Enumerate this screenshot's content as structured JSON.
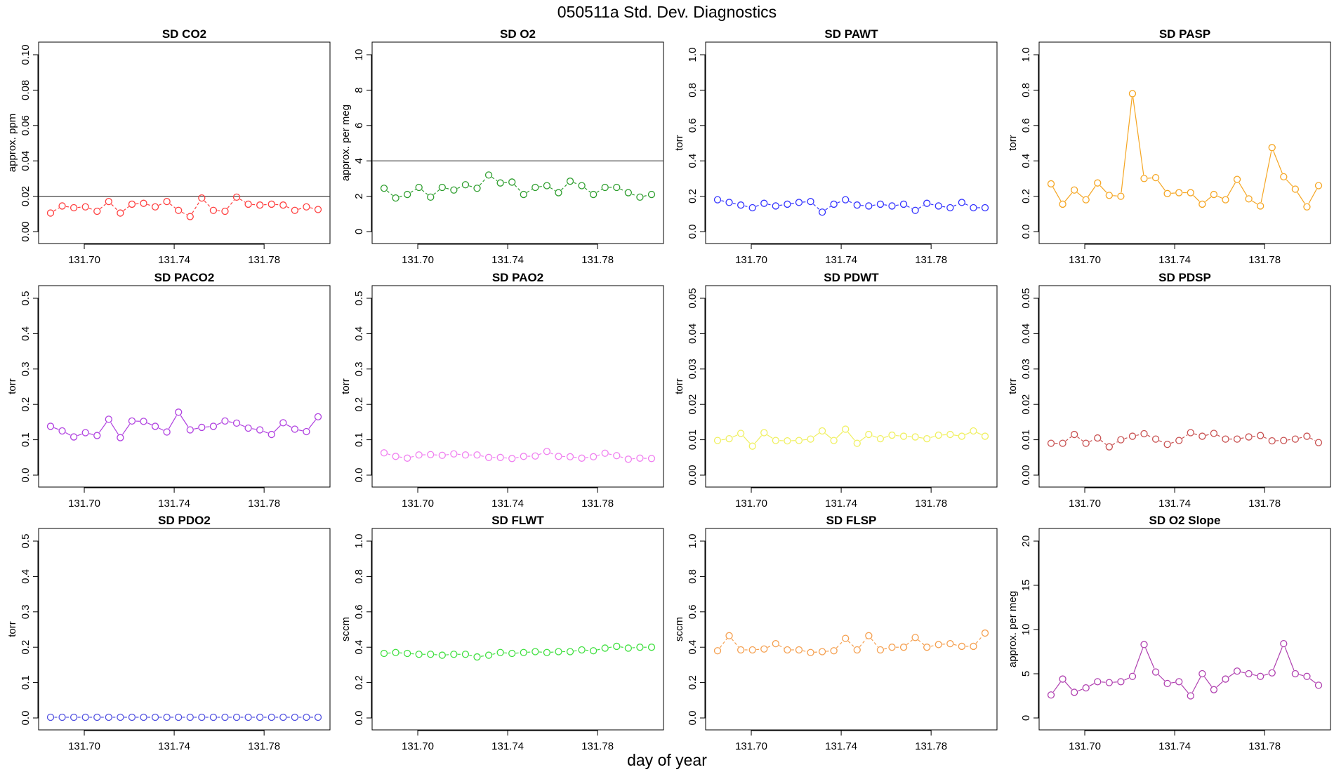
{
  "figure": {
    "title": "050511a   Std. Dev. Diagnostics",
    "xlabel": "day of year",
    "x_ticks": [
      131.7,
      131.74,
      131.78
    ],
    "x_tick_labels": [
      "131.70",
      "131.74",
      "131.78"
    ]
  },
  "chart_data": [
    {
      "type": "line",
      "title": "SD CO2",
      "ylabel": "approx. ppm",
      "color": "#ff4040",
      "ylim": [
        0,
        0.1
      ],
      "yticks": [
        0,
        0.02,
        0.04,
        0.06,
        0.08,
        0.1
      ],
      "ytick_labels": [
        "0.00",
        "0.02",
        "0.04",
        "0.06",
        "0.08",
        "0.10"
      ],
      "hline": 0.02,
      "connect": "dashed",
      "values": [
        0.0105,
        0.0145,
        0.0135,
        0.014,
        0.0115,
        0.017,
        0.0105,
        0.0155,
        0.016,
        0.014,
        0.017,
        0.012,
        0.0085,
        0.019,
        0.012,
        0.0115,
        0.0195,
        0.0155,
        0.015,
        0.0155,
        0.015,
        0.012,
        0.014,
        0.0125
      ]
    },
    {
      "type": "line",
      "title": "SD O2",
      "ylabel": "approx. per meg",
      "color": "#2e9e2e",
      "ylim": [
        0,
        10
      ],
      "yticks": [
        0,
        2,
        4,
        6,
        8,
        10
      ],
      "ytick_labels": [
        "0",
        "2",
        "4",
        "6",
        "8",
        "10"
      ],
      "hline": 4,
      "connect": "dashed",
      "values": [
        2.45,
        1.9,
        2.1,
        2.5,
        1.95,
        2.5,
        2.35,
        2.65,
        2.45,
        3.2,
        2.75,
        2.8,
        2.1,
        2.5,
        2.6,
        2.2,
        2.85,
        2.6,
        2.1,
        2.5,
        2.5,
        2.2,
        1.95,
        2.1
      ]
    },
    {
      "type": "line",
      "title": "SD PAWT",
      "ylabel": "torr",
      "color": "#3333ff",
      "ylim": [
        0,
        1.0
      ],
      "yticks": [
        0,
        0.2,
        0.4,
        0.6,
        0.8,
        1.0
      ],
      "ytick_labels": [
        "0.0",
        "0.2",
        "0.4",
        "0.6",
        "0.8",
        "1.0"
      ],
      "hline": null,
      "connect": "dashed",
      "values": [
        0.18,
        0.165,
        0.15,
        0.135,
        0.16,
        0.145,
        0.155,
        0.165,
        0.17,
        0.11,
        0.155,
        0.18,
        0.15,
        0.145,
        0.155,
        0.145,
        0.155,
        0.12,
        0.16,
        0.145,
        0.135,
        0.165,
        0.135,
        0.135
      ]
    },
    {
      "type": "line",
      "title": "SD PASP",
      "ylabel": "torr",
      "color": "#f5a623",
      "ylim": [
        0,
        1.0
      ],
      "yticks": [
        0,
        0.2,
        0.4,
        0.6,
        0.8,
        1.0
      ],
      "ytick_labels": [
        "0.0",
        "0.2",
        "0.4",
        "0.6",
        "0.8",
        "1.0"
      ],
      "hline": null,
      "connect": "solid",
      "values": [
        0.27,
        0.155,
        0.235,
        0.18,
        0.275,
        0.205,
        0.2,
        0.78,
        0.3,
        0.305,
        0.215,
        0.22,
        0.22,
        0.155,
        0.21,
        0.18,
        0.295,
        0.185,
        0.145,
        0.475,
        0.31,
        0.24,
        0.14,
        0.26
      ]
    },
    {
      "type": "line",
      "title": "SD PACO2",
      "ylabel": "torr",
      "color": "#b040e0",
      "ylim": [
        0,
        0.5
      ],
      "yticks": [
        0,
        0.1,
        0.2,
        0.3,
        0.4,
        0.5
      ],
      "ytick_labels": [
        "0.0",
        "0.1",
        "0.2",
        "0.3",
        "0.4",
        "0.5"
      ],
      "hline": null,
      "connect": "solid",
      "values": [
        0.138,
        0.125,
        0.108,
        0.12,
        0.112,
        0.158,
        0.106,
        0.153,
        0.152,
        0.138,
        0.122,
        0.178,
        0.128,
        0.135,
        0.138,
        0.153,
        0.147,
        0.133,
        0.128,
        0.115,
        0.148,
        0.13,
        0.123,
        0.165
      ]
    },
    {
      "type": "line",
      "title": "SD PAO2",
      "ylabel": "torr",
      "color": "#f080f0",
      "ylim": [
        0,
        0.5
      ],
      "yticks": [
        0,
        0.1,
        0.2,
        0.3,
        0.4,
        0.5
      ],
      "ytick_labels": [
        "0.0",
        "0.1",
        "0.2",
        "0.3",
        "0.4",
        "0.5"
      ],
      "hline": null,
      "connect": "dashed",
      "values": [
        0.063,
        0.053,
        0.048,
        0.057,
        0.058,
        0.056,
        0.06,
        0.057,
        0.057,
        0.05,
        0.05,
        0.047,
        0.053,
        0.054,
        0.067,
        0.053,
        0.052,
        0.048,
        0.052,
        0.062,
        0.055,
        0.045,
        0.048,
        0.047
      ]
    },
    {
      "type": "line",
      "title": "SD PDWT",
      "ylabel": "torr",
      "color": "#f0f060",
      "ylim": [
        0,
        0.05
      ],
      "yticks": [
        0,
        0.01,
        0.02,
        0.03,
        0.04,
        0.05
      ],
      "ytick_labels": [
        "0.00",
        "0.01",
        "0.02",
        "0.03",
        "0.04",
        "0.05"
      ],
      "hline": null,
      "connect": "solid",
      "values": [
        0.0098,
        0.0103,
        0.0118,
        0.0082,
        0.012,
        0.0098,
        0.0097,
        0.0098,
        0.0102,
        0.0125,
        0.0098,
        0.013,
        0.009,
        0.0115,
        0.0103,
        0.0113,
        0.011,
        0.0108,
        0.0103,
        0.0113,
        0.0115,
        0.011,
        0.0125,
        0.011
      ]
    },
    {
      "type": "line",
      "title": "SD PDSP",
      "ylabel": "torr",
      "color": "#c85050",
      "ylim": [
        0,
        0.05
      ],
      "yticks": [
        0,
        0.01,
        0.02,
        0.03,
        0.04,
        0.05
      ],
      "ytick_labels": [
        "0.00",
        "0.01",
        "0.02",
        "0.03",
        "0.04",
        "0.05"
      ],
      "hline": null,
      "connect": "dashed",
      "values": [
        0.009,
        0.009,
        0.0115,
        0.009,
        0.0105,
        0.008,
        0.01,
        0.011,
        0.0117,
        0.0102,
        0.0087,
        0.0098,
        0.012,
        0.011,
        0.0118,
        0.0102,
        0.0102,
        0.0108,
        0.0112,
        0.0097,
        0.0098,
        0.0102,
        0.011,
        0.0092
      ]
    },
    {
      "type": "line",
      "title": "SD PDO2",
      "ylabel": "torr",
      "color": "#5050e0",
      "ylim": [
        0,
        0.5
      ],
      "yticks": [
        0,
        0.1,
        0.2,
        0.3,
        0.4,
        0.5
      ],
      "ytick_labels": [
        "0.0",
        "0.1",
        "0.2",
        "0.3",
        "0.4",
        "0.5"
      ],
      "hline": null,
      "connect": "dashed",
      "values": [
        0.002,
        0.002,
        0.002,
        0.002,
        0.002,
        0.002,
        0.002,
        0.002,
        0.002,
        0.002,
        0.002,
        0.002,
        0.002,
        0.002,
        0.002,
        0.002,
        0.002,
        0.002,
        0.002,
        0.002,
        0.002,
        0.002,
        0.002,
        0.002
      ]
    },
    {
      "type": "line",
      "title": "SD FLWT",
      "ylabel": "sccm",
      "color": "#40e040",
      "ylim": [
        0,
        1.0
      ],
      "yticks": [
        0,
        0.2,
        0.4,
        0.6,
        0.8,
        1.0
      ],
      "ytick_labels": [
        "0.0",
        "0.2",
        "0.4",
        "0.6",
        "0.8",
        "1.0"
      ],
      "hline": null,
      "connect": "dashed",
      "values": [
        0.365,
        0.37,
        0.365,
        0.36,
        0.36,
        0.355,
        0.36,
        0.36,
        0.345,
        0.355,
        0.37,
        0.365,
        0.37,
        0.375,
        0.37,
        0.375,
        0.375,
        0.385,
        0.38,
        0.395,
        0.405,
        0.395,
        0.4,
        0.4
      ]
    },
    {
      "type": "line",
      "title": "SD FLSP",
      "ylabel": "sccm",
      "color": "#f5a050",
      "ylim": [
        0,
        1.0
      ],
      "yticks": [
        0,
        0.2,
        0.4,
        0.6,
        0.8,
        1.0
      ],
      "ytick_labels": [
        "0.0",
        "0.2",
        "0.4",
        "0.6",
        "0.8",
        "1.0"
      ],
      "hline": null,
      "connect": "dashed",
      "values": [
        0.38,
        0.465,
        0.385,
        0.385,
        0.39,
        0.42,
        0.385,
        0.385,
        0.37,
        0.375,
        0.38,
        0.45,
        0.385,
        0.465,
        0.385,
        0.4,
        0.4,
        0.455,
        0.4,
        0.415,
        0.42,
        0.405,
        0.405,
        0.48
      ]
    },
    {
      "type": "line",
      "title": "SD O2 Slope",
      "ylabel": "approx. per meg",
      "color": "#b040b0",
      "ylim": [
        0,
        20
      ],
      "yticks": [
        0,
        5,
        10,
        15,
        20
      ],
      "ytick_labels": [
        "0",
        "5",
        "10",
        "15",
        "20"
      ],
      "hline": null,
      "connect": "solid",
      "values": [
        2.6,
        4.4,
        2.9,
        3.4,
        4.1,
        4.0,
        4.1,
        4.7,
        8.3,
        5.2,
        3.9,
        4.1,
        2.5,
        5.0,
        3.2,
        4.4,
        5.3,
        5.0,
        4.7,
        5.1,
        8.4,
        5.0,
        4.7,
        3.7
      ]
    }
  ]
}
